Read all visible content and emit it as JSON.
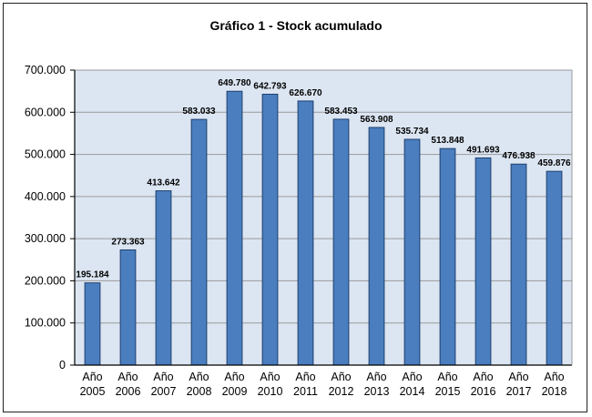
{
  "chart_data": {
    "type": "bar",
    "title": "Gráfico 1 - Stock acumulado",
    "xlabel": "",
    "ylabel": "",
    "ylim": [
      0,
      700000
    ],
    "yticks": [
      0,
      100000,
      200000,
      300000,
      400000,
      500000,
      600000,
      700000
    ],
    "ytick_labels": [
      "0",
      "100.000",
      "200.000",
      "300.000",
      "400.000",
      "500.000",
      "600.000",
      "700.000"
    ],
    "categories": [
      [
        "Año",
        "2005"
      ],
      [
        "Año",
        "2006"
      ],
      [
        "Año",
        "2007"
      ],
      [
        "Año",
        "2008"
      ],
      [
        "Año",
        "2009"
      ],
      [
        "Año",
        "2010"
      ],
      [
        "Año",
        "2011"
      ],
      [
        "Año",
        "2012"
      ],
      [
        "Año",
        "2013"
      ],
      [
        "Año",
        "2014"
      ],
      [
        "Año",
        "2015"
      ],
      [
        "Año",
        "2016"
      ],
      [
        "Año",
        "2017"
      ],
      [
        "Año",
        "2018"
      ]
    ],
    "values": [
      195184,
      273363,
      413642,
      583033,
      649780,
      642793,
      626670,
      583453,
      563908,
      535734,
      513848,
      491693,
      476938,
      459876
    ],
    "value_labels": [
      "195.184",
      "273.363",
      "413.642",
      "583.033",
      "649.780",
      "642.793",
      "626.670",
      "583.453",
      "563.908",
      "535.734",
      "513.848",
      "491.693",
      "476.938",
      "459.876"
    ],
    "grid": true,
    "legend": "none",
    "colors": {
      "bar_fill": "#4a7ebf",
      "bar_stroke": "#1f3f6e",
      "plot_background": "#dce6f2",
      "gridline": "#9a9a9a"
    }
  }
}
